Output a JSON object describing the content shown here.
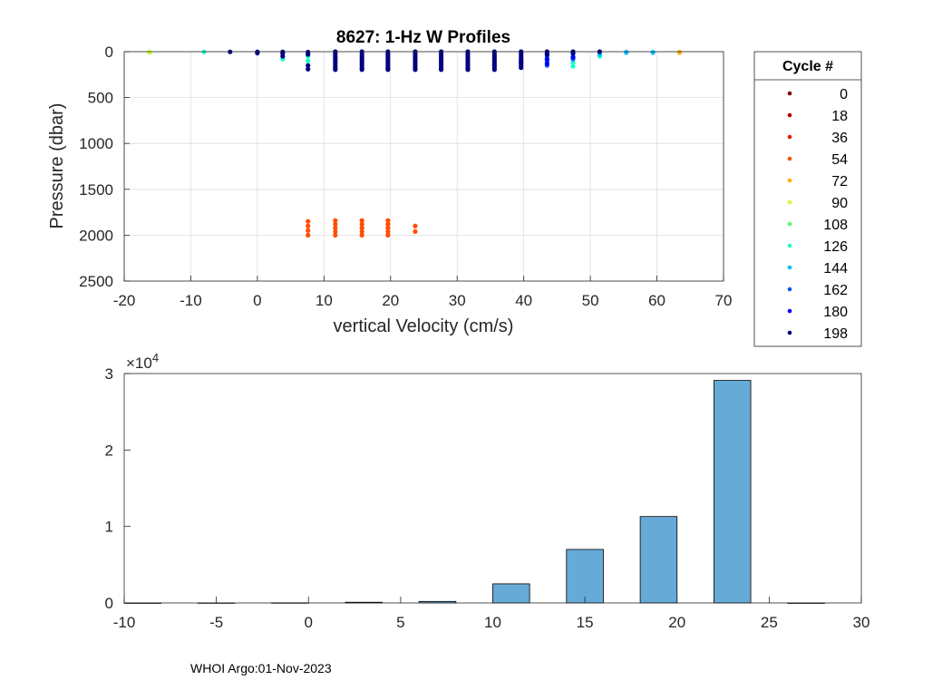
{
  "chart_data": [
    {
      "type": "scatter",
      "title": "8627: 1-Hz W Profiles",
      "xlabel": "vertical Velocity (cm/s)",
      "ylabel": "Pressure (dbar)",
      "xlim": [
        -20,
        70
      ],
      "ylim": [
        0,
        2500
      ],
      "y_reversed": true,
      "grid": true,
      "xticks": [
        "-20",
        "-10",
        "0",
        "10",
        "20",
        "30",
        "40",
        "50",
        "60",
        "70"
      ],
      "yticks": [
        "0",
        "500",
        "1000",
        "1500",
        "2000",
        "2500"
      ],
      "legend": {
        "title": "Cycle #",
        "placement": "outside-right",
        "entries": [
          {
            "label": "0",
            "color": "#800000"
          },
          {
            "label": "18",
            "color": "#b30000"
          },
          {
            "label": "36",
            "color": "#e61a00"
          },
          {
            "label": "54",
            "color": "#ff4d00"
          },
          {
            "label": "72",
            "color": "#ffb300"
          },
          {
            "label": "90",
            "color": "#ccff33"
          },
          {
            "label": "108",
            "color": "#4dff66"
          },
          {
            "label": "126",
            "color": "#1affc8"
          },
          {
            "label": "144",
            "color": "#00bfff"
          },
          {
            "label": "162",
            "color": "#0059ff"
          },
          {
            "label": "180",
            "color": "#0000f0"
          },
          {
            "label": "198",
            "color": "#000080"
          }
        ]
      },
      "series": [
        {
          "name": "54",
          "color": "#ff4d00",
          "points": [
            [
              7.6,
              1850
            ],
            [
              7.6,
              1900
            ],
            [
              7.6,
              1950
            ],
            [
              7.6,
              2000
            ],
            [
              11.7,
              1840
            ],
            [
              11.7,
              1880
            ],
            [
              11.7,
              1920
            ],
            [
              11.7,
              1960
            ],
            [
              11.7,
              2000
            ],
            [
              15.7,
              1840
            ],
            [
              15.7,
              1880
            ],
            [
              15.7,
              1920
            ],
            [
              15.7,
              1960
            ],
            [
              15.7,
              2000
            ],
            [
              19.6,
              1840
            ],
            [
              19.6,
              1880
            ],
            [
              19.6,
              1920
            ],
            [
              19.6,
              1960
            ],
            [
              19.6,
              2000
            ],
            [
              23.7,
              1900
            ],
            [
              23.7,
              1960
            ]
          ]
        },
        {
          "name": "72",
          "color": "#ffb300",
          "points": [
            [
              63.4,
              5
            ],
            [
              63.4,
              10
            ]
          ]
        },
        {
          "name": "90",
          "color": "#ccff33",
          "points": [
            [
              -16.2,
              5
            ],
            [
              -16.2,
              10
            ]
          ]
        },
        {
          "name": "126",
          "color": "#1affc8",
          "points": [
            [
              -8.0,
              3
            ],
            [
              3.8,
              80
            ],
            [
              7.6,
              50
            ],
            [
              7.6,
              100
            ],
            [
              47.4,
              160
            ],
            [
              47.4,
              120
            ],
            [
              51.4,
              50
            ],
            [
              59.4,
              5
            ]
          ]
        },
        {
          "name": "144",
          "color": "#00bfff",
          "points": [
            [
              55.4,
              5
            ],
            [
              55.4,
              10
            ],
            [
              51.4,
              30
            ],
            [
              47.4,
              50
            ],
            [
              59.4,
              10
            ]
          ]
        },
        {
          "name": "162",
          "color": "#0059ff",
          "points": [
            [
              43.5,
              50
            ],
            [
              43.5,
              100
            ],
            [
              43.5,
              150
            ],
            [
              47.4,
              80
            ],
            [
              39.6,
              120
            ],
            [
              35.6,
              150
            ]
          ]
        },
        {
          "name": "180",
          "color": "#0000f0",
          "points": [
            [
              43.5,
              20
            ],
            [
              43.5,
              80
            ],
            [
              43.5,
              130
            ],
            [
              47.4,
              20
            ],
            [
              47.4,
              60
            ]
          ]
        },
        {
          "name": "198",
          "color": "#000080",
          "points": [
            [
              -4.1,
              2
            ],
            [
              0.0,
              2
            ],
            [
              0.0,
              15
            ],
            [
              3.8,
              2
            ],
            [
              3.8,
              20
            ],
            [
              3.8,
              50
            ],
            [
              7.6,
              5
            ],
            [
              7.6,
              30
            ],
            [
              7.6,
              150
            ],
            [
              7.6,
              190
            ],
            [
              11.7,
              0
            ],
            [
              11.7,
              25
            ],
            [
              11.7,
              50
            ],
            [
              11.7,
              75
            ],
            [
              11.7,
              100
            ],
            [
              11.7,
              125
            ],
            [
              11.7,
              150
            ],
            [
              11.7,
              175
            ],
            [
              11.7,
              195
            ],
            [
              15.7,
              0
            ],
            [
              15.7,
              25
            ],
            [
              15.7,
              50
            ],
            [
              15.7,
              75
            ],
            [
              15.7,
              100
            ],
            [
              15.7,
              125
            ],
            [
              15.7,
              150
            ],
            [
              15.7,
              175
            ],
            [
              15.7,
              195
            ],
            [
              19.6,
              0
            ],
            [
              19.6,
              25
            ],
            [
              19.6,
              50
            ],
            [
              19.6,
              75
            ],
            [
              19.6,
              100
            ],
            [
              19.6,
              125
            ],
            [
              19.6,
              150
            ],
            [
              19.6,
              175
            ],
            [
              19.6,
              195
            ],
            [
              23.7,
              0
            ],
            [
              23.7,
              25
            ],
            [
              23.7,
              50
            ],
            [
              23.7,
              75
            ],
            [
              23.7,
              100
            ],
            [
              23.7,
              125
            ],
            [
              23.7,
              150
            ],
            [
              23.7,
              175
            ],
            [
              23.7,
              195
            ],
            [
              27.6,
              0
            ],
            [
              27.6,
              25
            ],
            [
              27.6,
              50
            ],
            [
              27.6,
              75
            ],
            [
              27.6,
              100
            ],
            [
              27.6,
              125
            ],
            [
              27.6,
              150
            ],
            [
              27.6,
              175
            ],
            [
              27.6,
              195
            ],
            [
              31.6,
              0
            ],
            [
              31.6,
              25
            ],
            [
              31.6,
              50
            ],
            [
              31.6,
              75
            ],
            [
              31.6,
              100
            ],
            [
              31.6,
              125
            ],
            [
              31.6,
              150
            ],
            [
              31.6,
              175
            ],
            [
              31.6,
              195
            ],
            [
              35.6,
              0
            ],
            [
              35.6,
              25
            ],
            [
              35.6,
              50
            ],
            [
              35.6,
              75
            ],
            [
              35.6,
              100
            ],
            [
              35.6,
              125
            ],
            [
              35.6,
              150
            ],
            [
              35.6,
              175
            ],
            [
              35.6,
              195
            ],
            [
              39.6,
              0
            ],
            [
              39.6,
              25
            ],
            [
              39.6,
              50
            ],
            [
              39.6,
              75
            ],
            [
              39.6,
              100
            ],
            [
              39.6,
              125
            ],
            [
              39.6,
              150
            ],
            [
              39.6,
              175
            ],
            [
              43.5,
              0
            ],
            [
              43.5,
              30
            ],
            [
              47.4,
              0
            ],
            [
              47.4,
              10
            ],
            [
              51.4,
              0
            ]
          ]
        }
      ]
    },
    {
      "type": "bar",
      "title": "",
      "xlabel": "",
      "ylabel": "",
      "xlim": [
        -10,
        30
      ],
      "ylim": [
        0,
        30000
      ],
      "y_exponent_label": "×10",
      "y_exponent_power": "4",
      "xticks": [
        "-10",
        "-5",
        "0",
        "5",
        "10",
        "15",
        "20",
        "25",
        "30"
      ],
      "yticks": [
        "0",
        "1",
        "2",
        "3"
      ],
      "bar_color": "#66aad7",
      "bins": [
        {
          "from": -10,
          "to": -8,
          "value": 0
        },
        {
          "from": -6,
          "to": -4,
          "value": 10
        },
        {
          "from": -2,
          "to": 0,
          "value": 20
        },
        {
          "from": 2,
          "to": 4,
          "value": 90
        },
        {
          "from": 6,
          "to": 8,
          "value": 200
        },
        {
          "from": 10,
          "to": 12,
          "value": 2500
        },
        {
          "from": 14,
          "to": 16,
          "value": 7000
        },
        {
          "from": 18,
          "to": 20,
          "value": 11300
        },
        {
          "from": 22,
          "to": 24,
          "value": 29100
        },
        {
          "from": 26,
          "to": 28,
          "value": 0
        }
      ]
    }
  ],
  "footer": {
    "text": "WHOI Argo:01-Nov-2023"
  }
}
